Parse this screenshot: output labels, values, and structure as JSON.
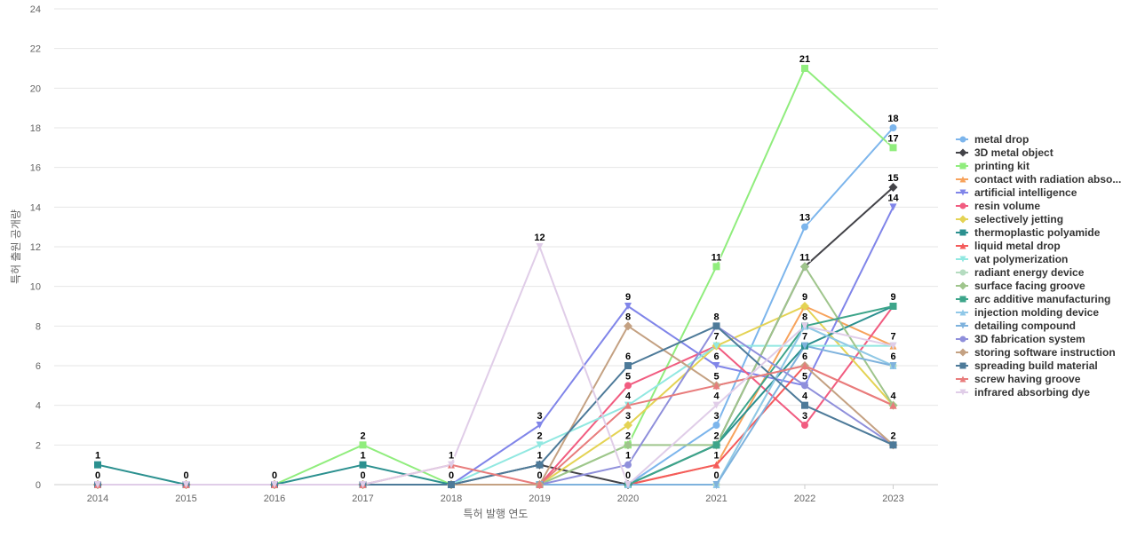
{
  "chart_data": {
    "type": "line",
    "xlabel": "특허 발행 연도",
    "ylabel": "특허 출원 공개량",
    "x": [
      "2014",
      "2015",
      "2016",
      "2017",
      "2018",
      "2019",
      "2020",
      "2021",
      "2022",
      "2023"
    ],
    "ylim": [
      0,
      24
    ],
    "yticks": [
      "0",
      "2",
      "4",
      "6",
      "8",
      "10",
      "12",
      "14",
      "16",
      "18",
      "20",
      "22",
      "24"
    ],
    "grid": true,
    "legend_position": "right",
    "series": [
      {
        "name": "metal drop",
        "color": "#7cb5ec",
        "marker": "circle",
        "values": [
          0,
          0,
          0,
          0,
          0,
          0,
          0,
          3,
          13,
          18
        ]
      },
      {
        "name": "3D metal object",
        "color": "#434348",
        "marker": "diamond",
        "values": [
          0,
          0,
          0,
          0,
          0,
          1,
          0,
          2,
          11,
          15
        ]
      },
      {
        "name": "printing kit",
        "color": "#90ed7d",
        "marker": "square",
        "values": [
          0,
          0,
          0,
          2,
          0,
          0,
          2,
          11,
          21,
          17
        ]
      },
      {
        "name": "contact with radiation abso...",
        "color": "#f7a35c",
        "marker": "triangle",
        "values": [
          0,
          0,
          0,
          0,
          0,
          0,
          0,
          1,
          9,
          7
        ]
      },
      {
        "name": "artificial intelligence",
        "color": "#8085e9",
        "marker": "triangle-down",
        "values": [
          0,
          0,
          0,
          0,
          0,
          3,
          9,
          6,
          5,
          14
        ]
      },
      {
        "name": "resin volume",
        "color": "#f15c80",
        "marker": "circle",
        "values": [
          0,
          0,
          0,
          0,
          0,
          0,
          5,
          7,
          3,
          9
        ]
      },
      {
        "name": "selectively jetting",
        "color": "#e4d354",
        "marker": "diamond",
        "values": [
          0,
          0,
          0,
          0,
          0,
          0,
          3,
          7,
          9,
          4
        ]
      },
      {
        "name": "thermoplastic polyamide",
        "color": "#2b908f",
        "marker": "square",
        "values": [
          1,
          0,
          0,
          1,
          0,
          0,
          0,
          2,
          7,
          9
        ]
      },
      {
        "name": "liquid metal drop",
        "color": "#f45b5b",
        "marker": "triangle",
        "values": [
          0,
          0,
          0,
          0,
          0,
          0,
          0,
          1,
          6,
          4
        ]
      },
      {
        "name": "vat polymerization",
        "color": "#91e8e1",
        "marker": "triangle-down",
        "values": [
          0,
          0,
          0,
          0,
          0,
          2,
          4,
          7,
          7,
          7
        ]
      },
      {
        "name": "radiant energy device",
        "color": "#b5dcc0",
        "marker": "circle",
        "values": [
          0,
          0,
          0,
          0,
          0,
          0,
          0,
          0,
          8,
          6
        ]
      },
      {
        "name": "surface facing groove",
        "color": "#9fc58c",
        "marker": "diamond",
        "values": [
          0,
          0,
          0,
          0,
          0,
          0,
          2,
          2,
          11,
          4
        ]
      },
      {
        "name": "arc additive manufacturing",
        "color": "#3da58a",
        "marker": "square",
        "values": [
          0,
          0,
          0,
          0,
          0,
          0,
          0,
          2,
          8,
          9
        ]
      },
      {
        "name": "injection molding device",
        "color": "#90c8e8",
        "marker": "triangle",
        "values": [
          0,
          0,
          0,
          0,
          0,
          0,
          0,
          0,
          8,
          6
        ]
      },
      {
        "name": "detailing compound",
        "color": "#7eb2dd",
        "marker": "triangle-down",
        "values": [
          0,
          0,
          0,
          0,
          0,
          0,
          0,
          0,
          7,
          6
        ]
      },
      {
        "name": "3D fabrication system",
        "color": "#8f8fdb",
        "marker": "circle",
        "values": [
          0,
          0,
          0,
          0,
          0,
          0,
          1,
          8,
          5,
          2
        ]
      },
      {
        "name": "storing software instruction",
        "color": "#c4a182",
        "marker": "diamond",
        "values": [
          0,
          0,
          0,
          0,
          0,
          0,
          8,
          5,
          6,
          2
        ]
      },
      {
        "name": "spreading build material",
        "color": "#4d7a99",
        "marker": "square",
        "values": [
          0,
          0,
          0,
          0,
          0,
          1,
          6,
          8,
          4,
          2
        ]
      },
      {
        "name": "screw having groove",
        "color": "#e87c7c",
        "marker": "triangle",
        "values": [
          0,
          0,
          0,
          0,
          1,
          0,
          4,
          5,
          6,
          4
        ]
      },
      {
        "name": "infrared absorbing dye",
        "color": "#e0cde8",
        "marker": "triangle-down",
        "values": [
          0,
          0,
          0,
          0,
          1,
          12,
          0,
          4,
          8,
          7
        ]
      }
    ],
    "data_labels": [
      {
        "x": "2014",
        "text": "1",
        "y": 1
      },
      {
        "x": "2014",
        "text": "0",
        "y": 0
      },
      {
        "x": "2015",
        "text": "0",
        "y": 0
      },
      {
        "x": "2016",
        "text": "0",
        "y": 0
      },
      {
        "x": "2017",
        "text": "2",
        "y": 2
      },
      {
        "x": "2017",
        "text": "1",
        "y": 1
      },
      {
        "x": "2017",
        "text": "0",
        "y": 0
      },
      {
        "x": "2018",
        "text": "1",
        "y": 1
      },
      {
        "x": "2018",
        "text": "0",
        "y": 0
      },
      {
        "x": "2019",
        "text": "12",
        "y": 12
      },
      {
        "x": "2019",
        "text": "3",
        "y": 3
      },
      {
        "x": "2019",
        "text": "2",
        "y": 2
      },
      {
        "x": "2019",
        "text": "1",
        "y": 1
      },
      {
        "x": "2019",
        "text": "0",
        "y": 0
      },
      {
        "x": "2020",
        "text": "9",
        "y": 9
      },
      {
        "x": "2020",
        "text": "8",
        "y": 8
      },
      {
        "x": "2020",
        "text": "6",
        "y": 6
      },
      {
        "x": "2020",
        "text": "5",
        "y": 5
      },
      {
        "x": "2020",
        "text": "4",
        "y": 4
      },
      {
        "x": "2020",
        "text": "3",
        "y": 3
      },
      {
        "x": "2020",
        "text": "2",
        "y": 2
      },
      {
        "x": "2020",
        "text": "1",
        "y": 1
      },
      {
        "x": "2020",
        "text": "0",
        "y": 0
      },
      {
        "x": "2021",
        "text": "11",
        "y": 11
      },
      {
        "x": "2021",
        "text": "8",
        "y": 8
      },
      {
        "x": "2021",
        "text": "7",
        "y": 7
      },
      {
        "x": "2021",
        "text": "6",
        "y": 6
      },
      {
        "x": "2021",
        "text": "5",
        "y": 5
      },
      {
        "x": "2021",
        "text": "4",
        "y": 4
      },
      {
        "x": "2021",
        "text": "3",
        "y": 3
      },
      {
        "x": "2021",
        "text": "2",
        "y": 2
      },
      {
        "x": "2021",
        "text": "1",
        "y": 1
      },
      {
        "x": "2021",
        "text": "0",
        "y": 0
      },
      {
        "x": "2022",
        "text": "21",
        "y": 21
      },
      {
        "x": "2022",
        "text": "13",
        "y": 13
      },
      {
        "x": "2022",
        "text": "11",
        "y": 11
      },
      {
        "x": "2022",
        "text": "9",
        "y": 9
      },
      {
        "x": "2022",
        "text": "8",
        "y": 8
      },
      {
        "x": "2022",
        "text": "7",
        "y": 7
      },
      {
        "x": "2022",
        "text": "6",
        "y": 6
      },
      {
        "x": "2022",
        "text": "5",
        "y": 5
      },
      {
        "x": "2022",
        "text": "4",
        "y": 4
      },
      {
        "x": "2022",
        "text": "3",
        "y": 3
      },
      {
        "x": "2023",
        "text": "18",
        "y": 18
      },
      {
        "x": "2023",
        "text": "17",
        "y": 17
      },
      {
        "x": "2023",
        "text": "15",
        "y": 15
      },
      {
        "x": "2023",
        "text": "14",
        "y": 14
      },
      {
        "x": "2023",
        "text": "9",
        "y": 9
      },
      {
        "x": "2023",
        "text": "7",
        "y": 7
      },
      {
        "x": "2023",
        "text": "6",
        "y": 6
      },
      {
        "x": "2023",
        "text": "4",
        "y": 4
      },
      {
        "x": "2023",
        "text": "2",
        "y": 2
      }
    ]
  }
}
